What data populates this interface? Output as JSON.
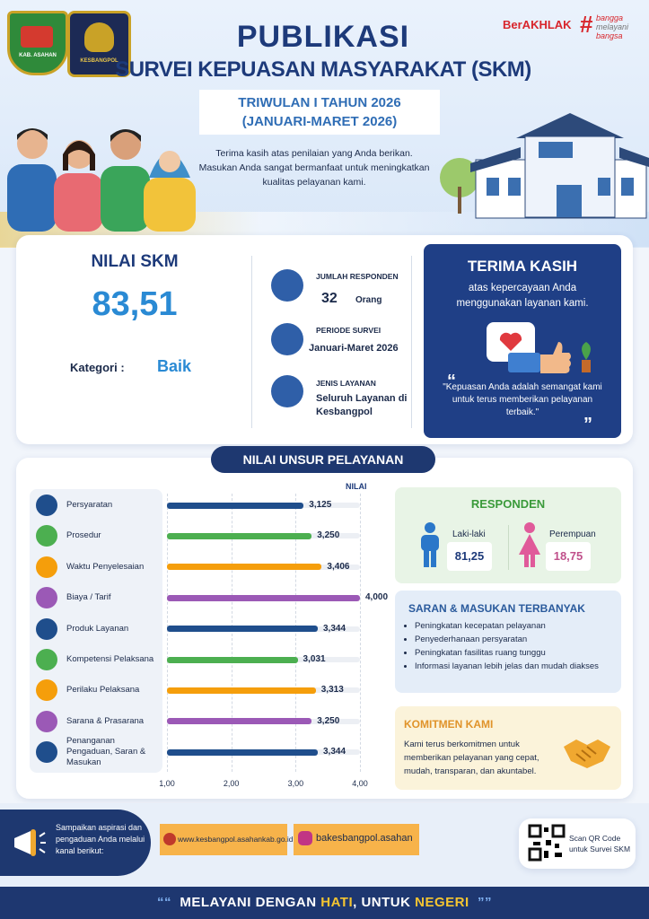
{
  "header": {
    "logo_left": "KAB. ASAHAN",
    "logo_right": "KESBANGPOL",
    "title": "PUBLIKASI",
    "subtitle": "SURVEI KEPUASAN MASYARAKAT (SKM)",
    "brand": "BerAKHLAK",
    "tagline_mark": "#",
    "tagline": [
      "bangga",
      "melayani",
      "bangsa"
    ],
    "period": "TRIWULAN I TAHUN 2026",
    "period_range": "(JANUARI-MARET 2026)",
    "intro": [
      "Terima kasih atas penilaian yang Anda berikan.",
      "Masukan Anda sangat bermanfaat untuk meningkatkan",
      "kualitas pelayanan kami."
    ]
  },
  "summary": {
    "label": "NILAI SKM",
    "score": "83,51",
    "category_label": "Kategori :",
    "category": "Baik",
    "items": [
      {
        "label": "JUMLAH RESPONDEN",
        "value": "32",
        "unit": "Orang"
      },
      {
        "label": "PERIODE SURVEI",
        "value": "Januari-Maret 2026"
      },
      {
        "label": "JENIS LAYANAN",
        "value": "Seluruh Layanan di Kesbangpol"
      }
    ]
  },
  "thanks": {
    "title": "TERIMA KASIH",
    "text": "atas kepercayaan Anda menggunakan layanan kami.",
    "quote": "\"Kepuasan Anda adalah semangat kami untuk terus memberikan pelayanan terbaik.\""
  },
  "chart_data": {
    "type": "bar",
    "orientation": "horizontal",
    "title": "NILAI UNSUR PELAYANAN",
    "value_axis_label": "NILAI",
    "categories": [
      "Persyaratan",
      "Prosedur",
      "Waktu Penyelesaian",
      "Biaya / Tarif",
      "Produk Layanan",
      "Kompetensi Pelaksana",
      "Perilaku Pelaksana",
      "Sarana & Prasarana",
      "Penanganan Pengaduan, Saran & Masukan"
    ],
    "values": [
      3.125,
      3.25,
      3.406,
      4,
      3.344,
      3.031,
      3.313,
      3.25,
      3.344
    ],
    "value_labels": [
      "3,125",
      "3,250",
      "3,406",
      "4,000",
      "3,344",
      "3,031",
      "3,313",
      "3,250",
      "3,344"
    ],
    "colors": [
      "#1f4e8c",
      "#4caf50",
      "#f59e0b",
      "#9b59b6",
      "#1f4e8c",
      "#4caf50",
      "#f59e0b",
      "#9b59b6",
      "#1f4e8c"
    ],
    "xlim": [
      1,
      4
    ],
    "xticks": [
      {
        "value": 1,
        "label": "1,00"
      },
      {
        "value": 2,
        "label": "2,00"
      },
      {
        "value": 3,
        "label": "3,00"
      },
      {
        "value": 4,
        "label": "4,00"
      }
    ],
    "grid": true
  },
  "respondents": {
    "title": "RESPONDEN",
    "groups": [
      {
        "label": "Laki-laki",
        "value": "81,25"
      },
      {
        "label": "Perempuan",
        "value": "18,75"
      }
    ]
  },
  "suggestions": {
    "title": "SARAN & MASUKAN TERBANYAK",
    "items": [
      "Peningkatan kecepatan pelayanan",
      "Penyederhanaan persyaratan",
      "Peningkatan fasilitas ruang tunggu",
      "Informasi layanan lebih jelas dan mudah diakses"
    ]
  },
  "commitment": {
    "title": "KOMITMEN KAMI",
    "text": "Kami terus berkomitmen untuk memberikan pelayanan yang cepat, mudah, transparan, dan akuntabel."
  },
  "footer": {
    "cta": "Sampaikan aspirasi dan pengaduan Anda melalui kanal berikut:",
    "website": "www.kesbangpol.asahankab.go.id",
    "instagram": "bakesbangpol.asahan",
    "qr": "Scan QR Code untuk Survei SKM",
    "motto": [
      "MELAYANI DENGAN ",
      "HATI",
      ", UNTUK ",
      "NEGERI"
    ]
  }
}
